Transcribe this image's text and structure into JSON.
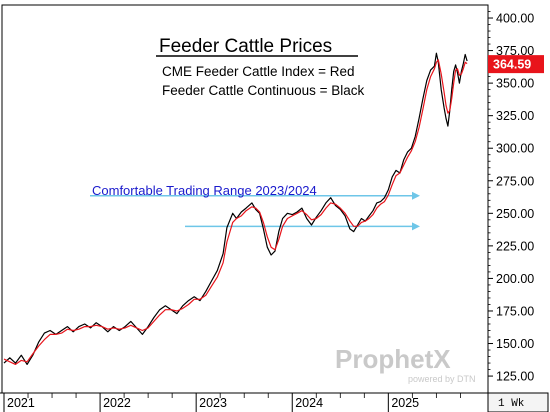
{
  "chart_data": {
    "type": "line",
    "title": "Feeder Cattle Prices",
    "subtitle_lines": [
      "CME Feeder Cattle Index = Red",
      "Feeder Cattle Continuous = Black"
    ],
    "annotation": "Comfortable Trading Range 2023/2024",
    "range_lines": [
      262,
      240
    ],
    "last_price": "364.59",
    "period": "1 Wk",
    "watermark": {
      "name": "ProphetX",
      "tagline": "powered by DTN"
    },
    "ylim": [
      112,
      410
    ],
    "yticks": [
      "400.00",
      "375.00",
      "350.00",
      "325.00",
      "300.00",
      "275.00",
      "250.00",
      "225.00",
      "200.00",
      "175.00",
      "150.00",
      "125.00"
    ],
    "x_labels": [
      "2021",
      "2022",
      "2023",
      "2024",
      "2025"
    ],
    "x_range": [
      2021.0,
      2025.85
    ],
    "series": [
      {
        "color": "#000000",
        "points": [
          [
            2021.0,
            135
          ],
          [
            2021.06,
            139
          ],
          [
            2021.12,
            135
          ],
          [
            2021.18,
            141
          ],
          [
            2021.24,
            134
          ],
          [
            2021.3,
            141
          ],
          [
            2021.36,
            151
          ],
          [
            2021.42,
            158
          ],
          [
            2021.48,
            160
          ],
          [
            2021.54,
            157
          ],
          [
            2021.6,
            160
          ],
          [
            2021.66,
            163
          ],
          [
            2021.72,
            159
          ],
          [
            2021.78,
            163
          ],
          [
            2021.84,
            165
          ],
          [
            2021.9,
            162
          ],
          [
            2021.96,
            166
          ],
          [
            2022.02,
            163
          ],
          [
            2022.08,
            159
          ],
          [
            2022.14,
            163
          ],
          [
            2022.2,
            160
          ],
          [
            2022.26,
            163
          ],
          [
            2022.32,
            167
          ],
          [
            2022.38,
            162
          ],
          [
            2022.44,
            157
          ],
          [
            2022.5,
            163
          ],
          [
            2022.56,
            170
          ],
          [
            2022.62,
            176
          ],
          [
            2022.68,
            179
          ],
          [
            2022.74,
            176
          ],
          [
            2022.8,
            173
          ],
          [
            2022.86,
            179
          ],
          [
            2022.92,
            183
          ],
          [
            2022.98,
            186
          ],
          [
            2023.04,
            183
          ],
          [
            2023.1,
            190
          ],
          [
            2023.16,
            198
          ],
          [
            2023.22,
            206
          ],
          [
            2023.28,
            219
          ],
          [
            2023.32,
            239
          ],
          [
            2023.38,
            250
          ],
          [
            2023.42,
            246
          ],
          [
            2023.47,
            251
          ],
          [
            2023.52,
            254
          ],
          [
            2023.58,
            258
          ],
          [
            2023.62,
            253
          ],
          [
            2023.66,
            250
          ],
          [
            2023.7,
            238
          ],
          [
            2023.74,
            224
          ],
          [
            2023.78,
            218
          ],
          [
            2023.82,
            221
          ],
          [
            2023.86,
            236
          ],
          [
            2023.9,
            246
          ],
          [
            2023.95,
            250
          ],
          [
            2024.0,
            249
          ],
          [
            2024.05,
            251
          ],
          [
            2024.1,
            254
          ],
          [
            2024.15,
            246
          ],
          [
            2024.2,
            241
          ],
          [
            2024.25,
            247
          ],
          [
            2024.3,
            252
          ],
          [
            2024.35,
            258
          ],
          [
            2024.4,
            262
          ],
          [
            2024.45,
            256
          ],
          [
            2024.5,
            253
          ],
          [
            2024.55,
            248
          ],
          [
            2024.6,
            238
          ],
          [
            2024.64,
            236
          ],
          [
            2024.68,
            241
          ],
          [
            2024.72,
            246
          ],
          [
            2024.76,
            244
          ],
          [
            2024.8,
            248
          ],
          [
            2024.84,
            252
          ],
          [
            2024.88,
            258
          ],
          [
            2024.92,
            259
          ],
          [
            2024.96,
            262
          ],
          [
            2025.0,
            268
          ],
          [
            2025.04,
            278
          ],
          [
            2025.08,
            283
          ],
          [
            2025.12,
            281
          ],
          [
            2025.16,
            291
          ],
          [
            2025.2,
            297
          ],
          [
            2025.24,
            300
          ],
          [
            2025.28,
            309
          ],
          [
            2025.32,
            323
          ],
          [
            2025.36,
            338
          ],
          [
            2025.4,
            352
          ],
          [
            2025.44,
            360
          ],
          [
            2025.48,
            363
          ],
          [
            2025.5,
            373
          ],
          [
            2025.52,
            366
          ],
          [
            2025.55,
            345
          ],
          [
            2025.58,
            331
          ],
          [
            2025.6,
            323
          ],
          [
            2025.62,
            317
          ],
          [
            2025.64,
            329
          ],
          [
            2025.66,
            345
          ],
          [
            2025.68,
            359
          ],
          [
            2025.7,
            364
          ],
          [
            2025.72,
            358
          ],
          [
            2025.74,
            350
          ],
          [
            2025.76,
            359
          ],
          [
            2025.78,
            365
          ],
          [
            2025.8,
            372
          ],
          [
            2025.82,
            367
          ]
        ]
      },
      {
        "color": "#e8141b",
        "points": [
          [
            2021.0,
            138
          ],
          [
            2021.06,
            136
          ],
          [
            2021.12,
            134
          ],
          [
            2021.18,
            137
          ],
          [
            2021.24,
            136
          ],
          [
            2021.3,
            142
          ],
          [
            2021.36,
            148
          ],
          [
            2021.42,
            153
          ],
          [
            2021.48,
            157
          ],
          [
            2021.54,
            157
          ],
          [
            2021.6,
            158
          ],
          [
            2021.66,
            161
          ],
          [
            2021.72,
            160
          ],
          [
            2021.78,
            161
          ],
          [
            2021.84,
            163
          ],
          [
            2021.9,
            163
          ],
          [
            2021.96,
            164
          ],
          [
            2022.02,
            163
          ],
          [
            2022.08,
            161
          ],
          [
            2022.14,
            162
          ],
          [
            2022.2,
            161
          ],
          [
            2022.26,
            162
          ],
          [
            2022.32,
            164
          ],
          [
            2022.38,
            162
          ],
          [
            2022.44,
            160
          ],
          [
            2022.5,
            162
          ],
          [
            2022.56,
            167
          ],
          [
            2022.62,
            172
          ],
          [
            2022.68,
            176
          ],
          [
            2022.74,
            176
          ],
          [
            2022.8,
            175
          ],
          [
            2022.86,
            177
          ],
          [
            2022.92,
            180
          ],
          [
            2022.98,
            184
          ],
          [
            2023.04,
            184
          ],
          [
            2023.1,
            187
          ],
          [
            2023.16,
            194
          ],
          [
            2023.22,
            201
          ],
          [
            2023.28,
            212
          ],
          [
            2023.32,
            228
          ],
          [
            2023.38,
            243
          ],
          [
            2023.42,
            246
          ],
          [
            2023.47,
            248
          ],
          [
            2023.52,
            252
          ],
          [
            2023.58,
            255
          ],
          [
            2023.62,
            254
          ],
          [
            2023.66,
            251
          ],
          [
            2023.7,
            243
          ],
          [
            2023.74,
            232
          ],
          [
            2023.78,
            224
          ],
          [
            2023.82,
            222
          ],
          [
            2023.86,
            230
          ],
          [
            2023.9,
            240
          ],
          [
            2023.95,
            246
          ],
          [
            2024.0,
            248
          ],
          [
            2024.05,
            250
          ],
          [
            2024.1,
            252
          ],
          [
            2024.15,
            249
          ],
          [
            2024.2,
            245
          ],
          [
            2024.25,
            246
          ],
          [
            2024.3,
            249
          ],
          [
            2024.35,
            254
          ],
          [
            2024.4,
            258
          ],
          [
            2024.45,
            257
          ],
          [
            2024.5,
            254
          ],
          [
            2024.55,
            250
          ],
          [
            2024.6,
            244
          ],
          [
            2024.64,
            240
          ],
          [
            2024.68,
            240
          ],
          [
            2024.72,
            243
          ],
          [
            2024.76,
            244
          ],
          [
            2024.8,
            246
          ],
          [
            2024.84,
            249
          ],
          [
            2024.88,
            254
          ],
          [
            2024.92,
            257
          ],
          [
            2024.96,
            259
          ],
          [
            2025.0,
            264
          ],
          [
            2025.04,
            272
          ],
          [
            2025.08,
            279
          ],
          [
            2025.12,
            281
          ],
          [
            2025.16,
            287
          ],
          [
            2025.2,
            293
          ],
          [
            2025.24,
            298
          ],
          [
            2025.28,
            305
          ],
          [
            2025.32,
            316
          ],
          [
            2025.36,
            330
          ],
          [
            2025.4,
            345
          ],
          [
            2025.44,
            355
          ],
          [
            2025.48,
            361
          ],
          [
            2025.5,
            366
          ],
          [
            2025.52,
            368
          ],
          [
            2025.55,
            357
          ],
          [
            2025.58,
            343
          ],
          [
            2025.6,
            333
          ],
          [
            2025.62,
            327
          ],
          [
            2025.64,
            329
          ],
          [
            2025.66,
            338
          ],
          [
            2025.68,
            350
          ],
          [
            2025.7,
            360
          ],
          [
            2025.72,
            361
          ],
          [
            2025.74,
            356
          ],
          [
            2025.76,
            357
          ],
          [
            2025.78,
            361
          ],
          [
            2025.8,
            366
          ],
          [
            2025.82,
            365
          ]
        ]
      }
    ]
  }
}
